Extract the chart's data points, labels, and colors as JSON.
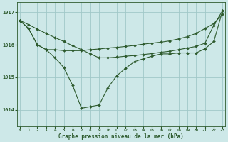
{
  "background_color": "#cde8e8",
  "grid_color": "#a0c8c8",
  "line_color": "#2d5a2d",
  "marker_color": "#2d5a2d",
  "text_color": "#2d5a2d",
  "xlabel_label": "Graphe pression niveau de la mer (hPa)",
  "ylim": [
    1013.5,
    1017.3
  ],
  "xlim": [
    -0.3,
    23.3
  ],
  "yticks": [
    1014,
    1015,
    1016,
    1017
  ],
  "xticks": [
    0,
    1,
    2,
    3,
    4,
    5,
    6,
    7,
    8,
    9,
    10,
    11,
    12,
    13,
    14,
    15,
    16,
    17,
    18,
    19,
    20,
    21,
    22,
    23
  ],
  "series1_x": [
    0,
    1,
    2,
    3,
    4,
    5,
    6,
    7,
    8,
    9,
    10,
    11,
    12,
    13,
    14,
    15,
    16,
    17,
    18,
    19,
    20,
    21,
    22,
    23
  ],
  "series1_y": [
    1016.75,
    1016.62,
    1016.48,
    1016.35,
    1016.22,
    1016.1,
    1015.97,
    1015.85,
    1015.72,
    1015.6,
    1015.6,
    1015.62,
    1015.65,
    1015.67,
    1015.7,
    1015.73,
    1015.77,
    1015.8,
    1015.85,
    1015.9,
    1015.95,
    1016.05,
    1016.6,
    1017.05
  ],
  "series2_x": [
    0,
    1,
    2,
    3,
    4,
    5,
    6,
    7,
    8,
    9,
    10,
    11,
    12,
    13,
    14,
    15,
    16,
    17,
    18,
    19,
    20,
    21,
    22,
    23
  ],
  "series2_y": [
    1016.75,
    1016.5,
    1016.0,
    1015.85,
    1015.6,
    1015.3,
    1014.75,
    1014.05,
    1014.1,
    1014.15,
    1014.68,
    1015.05,
    1015.28,
    1015.48,
    1015.57,
    1015.65,
    1015.72,
    1015.72,
    1015.75,
    1015.75,
    1015.75,
    1015.88,
    1016.1,
    1017.05
  ],
  "series3_x": [
    0,
    1,
    2,
    3,
    4,
    5,
    6,
    7,
    8,
    9,
    10,
    11,
    12,
    13,
    14,
    15,
    16,
    17,
    18,
    19,
    20,
    21,
    22,
    23
  ],
  "series3_y": [
    1016.75,
    1016.5,
    1016.0,
    1015.85,
    1015.85,
    1015.82,
    1015.82,
    1015.82,
    1015.85,
    1015.87,
    1015.9,
    1015.92,
    1015.95,
    1015.98,
    1016.02,
    1016.05,
    1016.08,
    1016.12,
    1016.18,
    1016.25,
    1016.35,
    1016.5,
    1016.65,
    1016.95
  ]
}
